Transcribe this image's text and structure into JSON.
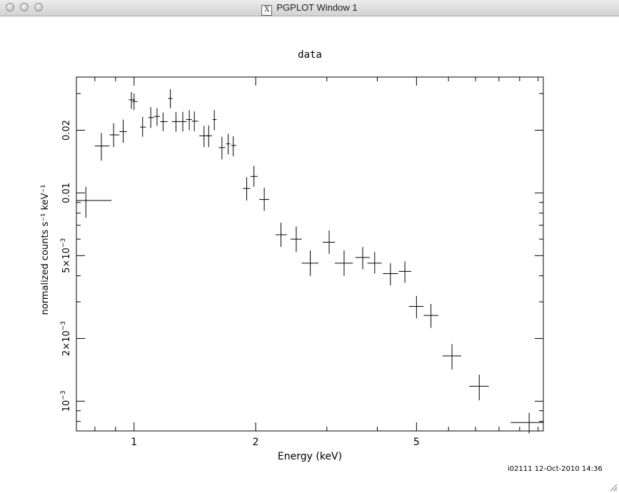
{
  "window": {
    "title": "PGPLOT Window 1",
    "icon": "x11-icon",
    "footer": "i02111 12-Oct-2010 14:36"
  },
  "chart_data": {
    "type": "scatter",
    "title": "data",
    "xlabel": "Energy (keV)",
    "ylabel": "normalized counts s⁻¹ keV⁻¹",
    "xscale": "log",
    "yscale": "log",
    "xlim": [
      0.72,
      10.3
    ],
    "ylim": [
      0.00072,
      0.036
    ],
    "grid": false,
    "legend": "none",
    "xticks": [
      {
        "value": 1,
        "label": "1"
      },
      {
        "value": 2,
        "label": "2"
      },
      {
        "value": 5,
        "label": "5"
      }
    ],
    "yticks": [
      {
        "value": 0.001,
        "label": "10",
        "sup": "−3"
      },
      {
        "value": 0.002,
        "label": "2×10",
        "sup": "−3"
      },
      {
        "value": 0.005,
        "label": "5×10",
        "sup": "−3"
      },
      {
        "value": 0.01,
        "label": "0.01",
        "sup": ""
      },
      {
        "value": 0.02,
        "label": "0.02",
        "sup": ""
      }
    ],
    "points": [
      {
        "x": 0.76,
        "xlo": 0.72,
        "xhi": 0.88,
        "y": 0.0092,
        "ylo": 0.0076,
        "yhi": 0.0107
      },
      {
        "x": 0.83,
        "xlo": 0.8,
        "xhi": 0.87,
        "y": 0.0168,
        "ylo": 0.0143,
        "yhi": 0.0194
      },
      {
        "x": 0.89,
        "xlo": 0.87,
        "xhi": 0.92,
        "y": 0.019,
        "ylo": 0.0166,
        "yhi": 0.0216
      },
      {
        "x": 0.94,
        "xlo": 0.92,
        "xhi": 0.96,
        "y": 0.0197,
        "ylo": 0.0174,
        "yhi": 0.0225
      },
      {
        "x": 0.985,
        "xlo": 0.97,
        "xhi": 1.005,
        "y": 0.028,
        "ylo": 0.0253,
        "yhi": 0.0305
      },
      {
        "x": 1.0,
        "xlo": 0.99,
        "xhi": 1.02,
        "y": 0.0275,
        "ylo": 0.025,
        "yhi": 0.03
      },
      {
        "x": 1.05,
        "xlo": 1.035,
        "xhi": 1.07,
        "y": 0.0207,
        "ylo": 0.0186,
        "yhi": 0.0232
      },
      {
        "x": 1.1,
        "xlo": 1.085,
        "xhi": 1.12,
        "y": 0.023,
        "ylo": 0.0205,
        "yhi": 0.0258
      },
      {
        "x": 1.14,
        "xlo": 1.12,
        "xhi": 1.16,
        "y": 0.0233,
        "ylo": 0.021,
        "yhi": 0.0255
      },
      {
        "x": 1.18,
        "xlo": 1.16,
        "xhi": 1.21,
        "y": 0.022,
        "ylo": 0.0198,
        "yhi": 0.0243
      },
      {
        "x": 1.23,
        "xlo": 1.215,
        "xhi": 1.245,
        "y": 0.0284,
        "ylo": 0.0255,
        "yhi": 0.0315
      },
      {
        "x": 1.27,
        "xlo": 1.24,
        "xhi": 1.3,
        "y": 0.022,
        "ylo": 0.0197,
        "yhi": 0.0244
      },
      {
        "x": 1.32,
        "xlo": 1.3,
        "xhi": 1.35,
        "y": 0.022,
        "ylo": 0.0197,
        "yhi": 0.0245
      },
      {
        "x": 1.37,
        "xlo": 1.345,
        "xhi": 1.39,
        "y": 0.0225,
        "ylo": 0.02,
        "yhi": 0.025
      },
      {
        "x": 1.41,
        "xlo": 1.39,
        "xhi": 1.44,
        "y": 0.0221,
        "ylo": 0.0198,
        "yhi": 0.0246
      },
      {
        "x": 1.49,
        "xlo": 1.45,
        "xhi": 1.53,
        "y": 0.0188,
        "ylo": 0.0166,
        "yhi": 0.021
      },
      {
        "x": 1.53,
        "xlo": 1.51,
        "xhi": 1.56,
        "y": 0.0188,
        "ylo": 0.0166,
        "yhi": 0.0211
      },
      {
        "x": 1.58,
        "xlo": 1.565,
        "xhi": 1.6,
        "y": 0.0225,
        "ylo": 0.02,
        "yhi": 0.025
      },
      {
        "x": 1.65,
        "xlo": 1.62,
        "xhi": 1.68,
        "y": 0.0165,
        "ylo": 0.0145,
        "yhi": 0.0186
      },
      {
        "x": 1.71,
        "xlo": 1.69,
        "xhi": 1.73,
        "y": 0.0172,
        "ylo": 0.0153,
        "yhi": 0.0192
      },
      {
        "x": 1.76,
        "xlo": 1.74,
        "xhi": 1.79,
        "y": 0.0169,
        "ylo": 0.015,
        "yhi": 0.0187
      },
      {
        "x": 1.9,
        "xlo": 1.86,
        "xhi": 1.94,
        "y": 0.0105,
        "ylo": 0.0092,
        "yhi": 0.0119
      },
      {
        "x": 1.98,
        "xlo": 1.94,
        "xhi": 2.02,
        "y": 0.012,
        "ylo": 0.0107,
        "yhi": 0.0135
      },
      {
        "x": 2.1,
        "xlo": 2.04,
        "xhi": 2.16,
        "y": 0.0093,
        "ylo": 0.0082,
        "yhi": 0.0106
      },
      {
        "x": 2.31,
        "xlo": 2.24,
        "xhi": 2.39,
        "y": 0.0063,
        "ylo": 0.0055,
        "yhi": 0.0072
      },
      {
        "x": 2.52,
        "xlo": 2.44,
        "xhi": 2.6,
        "y": 0.006,
        "ylo": 0.0052,
        "yhi": 0.0069
      },
      {
        "x": 2.73,
        "xlo": 2.6,
        "xhi": 2.86,
        "y": 0.0046,
        "ylo": 0.004,
        "yhi": 0.0053
      },
      {
        "x": 3.04,
        "xlo": 2.93,
        "xhi": 3.14,
        "y": 0.0058,
        "ylo": 0.0051,
        "yhi": 0.0066
      },
      {
        "x": 3.31,
        "xlo": 3.14,
        "xhi": 3.48,
        "y": 0.0046,
        "ylo": 0.004,
        "yhi": 0.0053
      },
      {
        "x": 3.68,
        "xlo": 3.53,
        "xhi": 3.83,
        "y": 0.0049,
        "ylo": 0.0043,
        "yhi": 0.0055
      },
      {
        "x": 3.94,
        "xlo": 3.78,
        "xhi": 4.1,
        "y": 0.0046,
        "ylo": 0.0041,
        "yhi": 0.0052
      },
      {
        "x": 4.31,
        "xlo": 4.13,
        "xhi": 4.5,
        "y": 0.0041,
        "ylo": 0.0036,
        "yhi": 0.0046
      },
      {
        "x": 4.68,
        "xlo": 4.52,
        "xhi": 4.85,
        "y": 0.0042,
        "ylo": 0.0037,
        "yhi": 0.0047
      },
      {
        "x": 5.0,
        "xlo": 4.79,
        "xhi": 5.21,
        "y": 0.00285,
        "ylo": 0.0025,
        "yhi": 0.0032
      },
      {
        "x": 5.43,
        "xlo": 5.21,
        "xhi": 5.66,
        "y": 0.00258,
        "ylo": 0.00225,
        "yhi": 0.00293
      },
      {
        "x": 6.12,
        "xlo": 5.8,
        "xhi": 6.45,
        "y": 0.00165,
        "ylo": 0.00142,
        "yhi": 0.00188
      },
      {
        "x": 7.15,
        "xlo": 6.75,
        "xhi": 7.55,
        "y": 0.00118,
        "ylo": 0.00101,
        "yhi": 0.00134
      },
      {
        "x": 9.5,
        "xlo": 8.55,
        "xhi": 10.3,
        "y": 0.00079,
        "ylo": 0.0007,
        "yhi": 0.00088
      }
    ]
  }
}
